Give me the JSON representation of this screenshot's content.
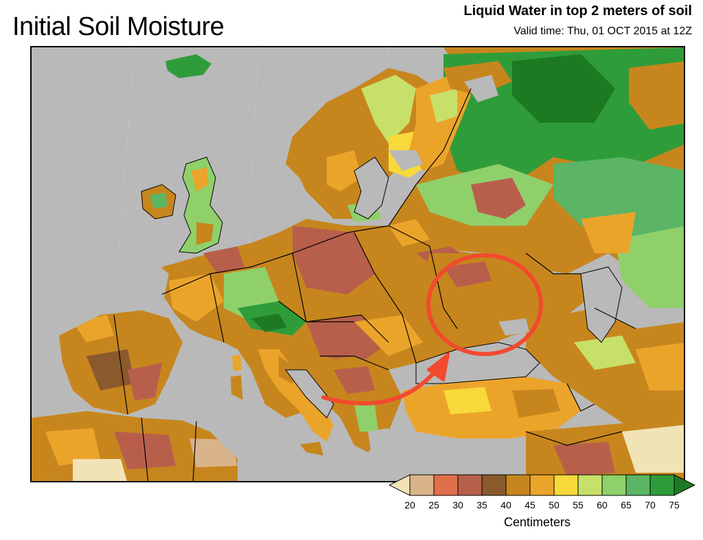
{
  "header": {
    "title": "Initial Soil Moisture",
    "subtitle": "Liquid Water in top 2 meters of soil",
    "valid_time": "Valid time: Thu, 01 OCT 2015 at 12Z"
  },
  "legend": {
    "unit": "Centimeters",
    "ticks": [
      "20",
      "25",
      "30",
      "35",
      "40",
      "45",
      "50",
      "55",
      "60",
      "65",
      "70",
      "75"
    ],
    "colors": [
      "#f2e3b6",
      "#d9b48a",
      "#e0704a",
      "#b85f4c",
      "#8a5a2d",
      "#c7861d",
      "#eba42a",
      "#f7d93a",
      "#c7e06a",
      "#8fd06b",
      "#5bb565",
      "#2f9c3a",
      "#1e7a22"
    ]
  },
  "colors": {
    "ocean": "#b9b9b9",
    "annotation": "#f24a2e",
    "border": "#000000"
  }
}
